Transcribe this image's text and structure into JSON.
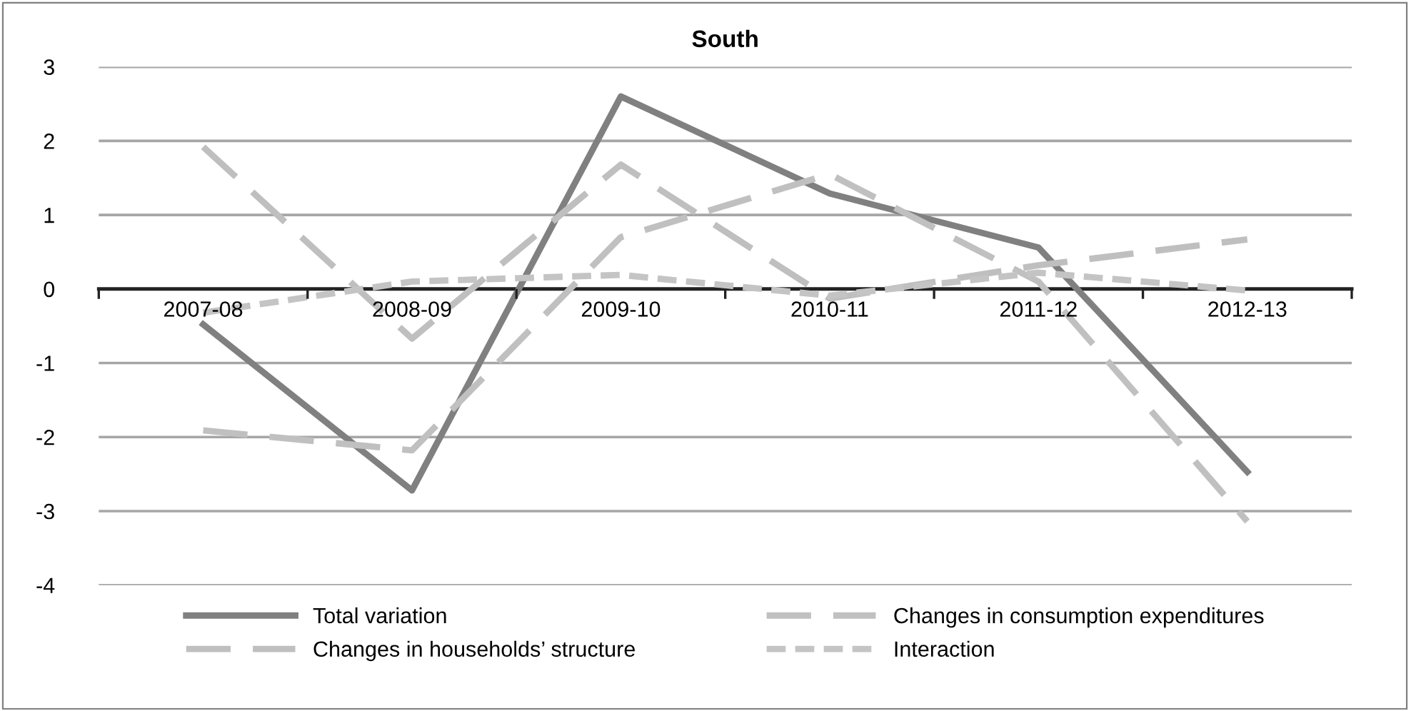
{
  "chart_data": {
    "type": "line",
    "title": "South",
    "categories": [
      "2007-08",
      "2008-09",
      "2009-10",
      "2010-11",
      "2011-12",
      "2012-13"
    ],
    "ylim": [
      -4,
      3
    ],
    "yticks": [
      -4,
      -3,
      -2,
      -1,
      0,
      1,
      2,
      3
    ],
    "grid": "y",
    "legend": "bottom",
    "marker": "none",
    "series": [
      {
        "name": "Total variation",
        "color": "#808080",
        "line_style": "solid",
        "values": [
          -0.48,
          -2.72,
          2.6,
          1.29,
          0.56,
          -2.47
        ]
      },
      {
        "name": "Changes in consumption expenditures",
        "color": "#c0c0c0",
        "line_style": "dashed",
        "values": [
          -1.91,
          -2.18,
          0.7,
          1.55,
          0.1,
          -3.14
        ]
      },
      {
        "name": "Changes in households’ structure",
        "color": "#bfbfbf",
        "line_style": "dashed",
        "values": [
          1.92,
          -0.67,
          1.68,
          -0.13,
          0.32,
          0.67
        ]
      },
      {
        "name": "Interaction",
        "color": "#c4c4c4",
        "line_style": "dotted",
        "values": [
          -0.32,
          0.1,
          0.19,
          -0.09,
          0.22,
          -0.02
        ]
      }
    ]
  }
}
